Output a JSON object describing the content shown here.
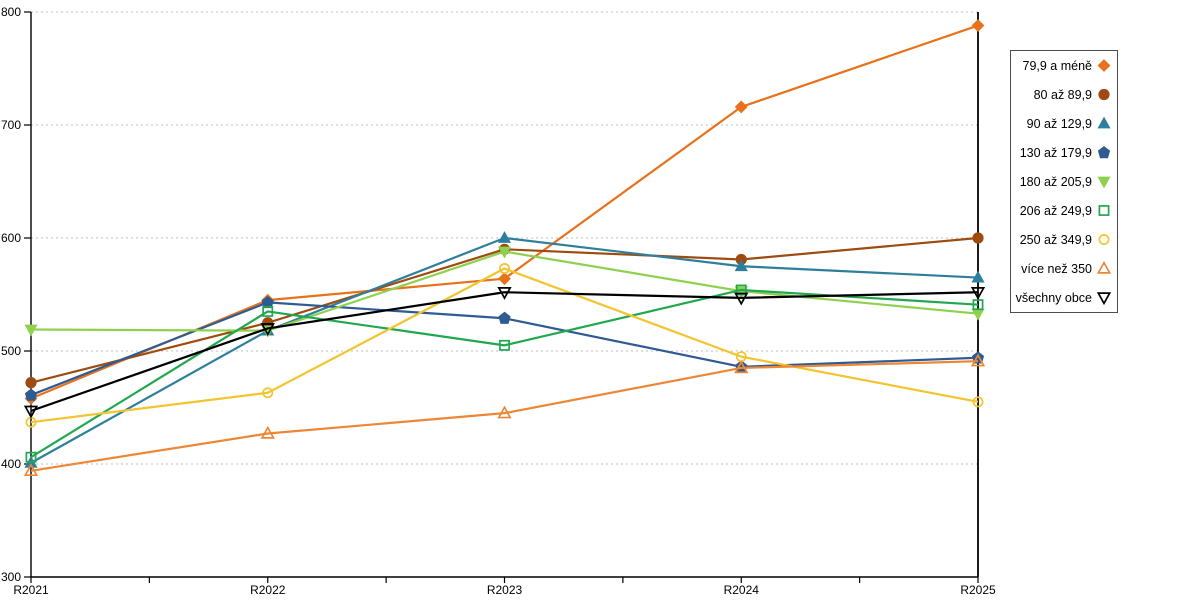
{
  "chart_data": {
    "type": "line",
    "title": "",
    "xlabel": "",
    "ylabel": "",
    "grid": "horizontal-dashed",
    "legend_position": "right",
    "ylim": [
      300,
      800
    ],
    "ytick_step": 100,
    "yticks": [
      "300",
      "400",
      "500",
      "600",
      "700",
      "800"
    ],
    "categories": [
      "R2021",
      "R2022",
      "R2023",
      "R2024",
      "R2025"
    ],
    "series": [
      {
        "name": "79,9 a méně",
        "marker": "diamond",
        "fill": "filled",
        "color": "#E8721C",
        "values": [
          458,
          545,
          564,
          716,
          788
        ]
      },
      {
        "name": "80 až 89,9",
        "marker": "circle",
        "fill": "filled",
        "color": "#9E4B10",
        "values": [
          472,
          525,
          590,
          581,
          600
        ]
      },
      {
        "name": "90 až 129,9",
        "marker": "triangle-up",
        "fill": "filled",
        "color": "#2E7F9C",
        "values": [
          401,
          518,
          600,
          575,
          565
        ]
      },
      {
        "name": "130 až 179,9",
        "marker": "pentagon",
        "fill": "filled",
        "color": "#2F5B93",
        "values": [
          461,
          543,
          529,
          486,
          494
        ]
      },
      {
        "name": "180 až 205,9",
        "marker": "triangle-down",
        "fill": "filled",
        "color": "#8FD050",
        "values": [
          519,
          518,
          588,
          553,
          533
        ]
      },
      {
        "name": "206 až 249,9",
        "marker": "square",
        "fill": "open",
        "color": "#21A84E",
        "values": [
          406,
          535,
          505,
          554,
          541
        ]
      },
      {
        "name": "250 až 349,9",
        "marker": "circle",
        "fill": "open",
        "color": "#F2C42D",
        "values": [
          437,
          463,
          573,
          495,
          455
        ]
      },
      {
        "name": "více než 350",
        "marker": "triangle-up",
        "fill": "open",
        "color": "#ED8735",
        "values": [
          394,
          427,
          445,
          485,
          491
        ]
      },
      {
        "name": "všechny obce",
        "marker": "triangle-down",
        "fill": "open",
        "color": "#000000",
        "values": [
          447,
          520,
          552,
          547,
          552
        ]
      }
    ]
  },
  "colors": {
    "axis": "#000000",
    "gridline": "#BFBFBF",
    "text": "#000000",
    "legend_border": "#4D4D4D",
    "background": "#FFFFFF"
  }
}
